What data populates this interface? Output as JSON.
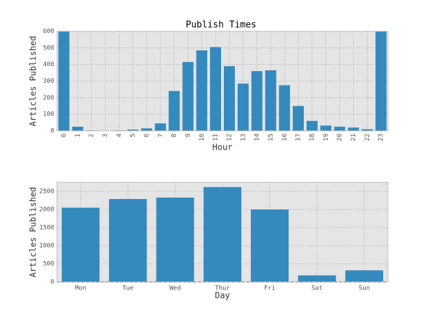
{
  "chart_data": [
    {
      "type": "bar",
      "title": "Publish Times",
      "x_label": "Hour",
      "y_label": "Articles Published",
      "categories": [
        0,
        1,
        2,
        3,
        4,
        5,
        6,
        7,
        8,
        9,
        10,
        11,
        12,
        13,
        14,
        15,
        16,
        17,
        18,
        19,
        20,
        21,
        22,
        23
      ],
      "values": [
        600,
        25,
        3,
        2,
        3,
        8,
        15,
        45,
        240,
        415,
        485,
        505,
        390,
        285,
        360,
        365,
        275,
        150,
        60,
        32,
        25,
        20,
        10,
        600
      ],
      "color": "#348abd",
      "ylim": [
        0,
        600
      ],
      "yticks": [
        0,
        100,
        200,
        300,
        400,
        500,
        600
      ],
      "grid": true,
      "rotate_x_labels": true
    },
    {
      "type": "bar",
      "x_label": "Day",
      "y_label": "Articles Published",
      "categories": [
        "Mon",
        "Tue",
        "Wed",
        "Thur",
        "Fri",
        "Sat",
        "Sun"
      ],
      "values": [
        2050,
        2290,
        2330,
        2620,
        2000,
        180,
        320
      ],
      "color": "#348abd",
      "ylim": [
        0,
        2750
      ],
      "yticks": [
        0,
        500,
        1000,
        1500,
        2000,
        2500
      ],
      "grid": true,
      "zero_line": true
    }
  ]
}
